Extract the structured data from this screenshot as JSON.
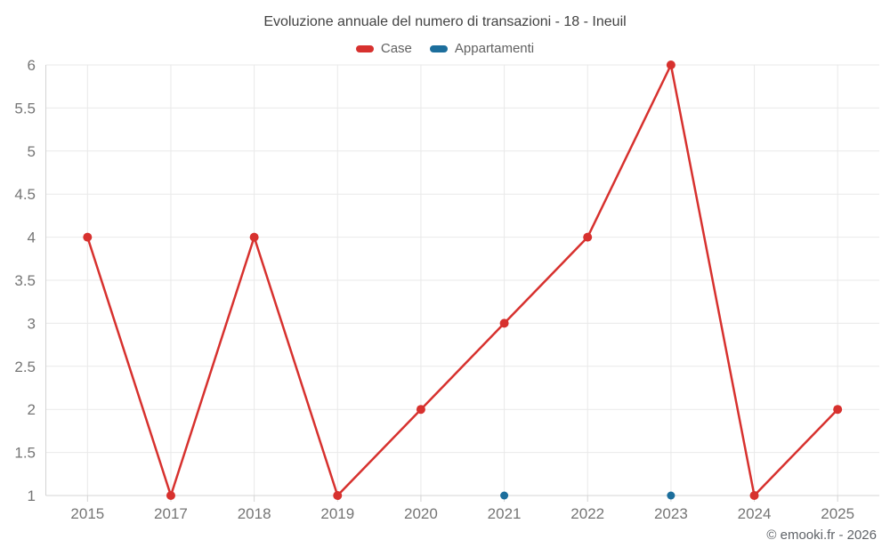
{
  "chart_data": {
    "type": "line",
    "title": "Evoluzione annuale del numero di transazioni - 18 - Ineuil",
    "categories": [
      "2015",
      "2017",
      "2018",
      "2019",
      "2020",
      "2021",
      "2022",
      "2023",
      "2024",
      "2025"
    ],
    "series": [
      {
        "name": "Case",
        "color": "#d7312e",
        "point_radius": 5,
        "line_width": 2.5,
        "values": [
          4,
          1,
          4,
          1,
          2,
          3,
          4,
          6,
          1,
          2
        ]
      },
      {
        "name": "Appartamenti",
        "color": "#1c6e9c",
        "point_radius": 4.5,
        "line_width": 2.5,
        "values": [
          null,
          null,
          null,
          null,
          null,
          1,
          null,
          1,
          null,
          null
        ]
      }
    ],
    "ylim": [
      1,
      6
    ],
    "y_ticks": [
      "1",
      "1.5",
      "2",
      "2.5",
      "3",
      "3.5",
      "4",
      "4.5",
      "5",
      "5.5",
      "6"
    ],
    "xlabel": "",
    "ylabel": "",
    "grid": true,
    "legend_position": "top",
    "palette": {
      "grid": "#e9e9e9",
      "axis": "#d4d4d4",
      "tick_text": "#757575",
      "title_text": "#424242",
      "legend_text": "#616161"
    }
  },
  "footer": {
    "copyright": "© emooki.fr - 2026"
  }
}
